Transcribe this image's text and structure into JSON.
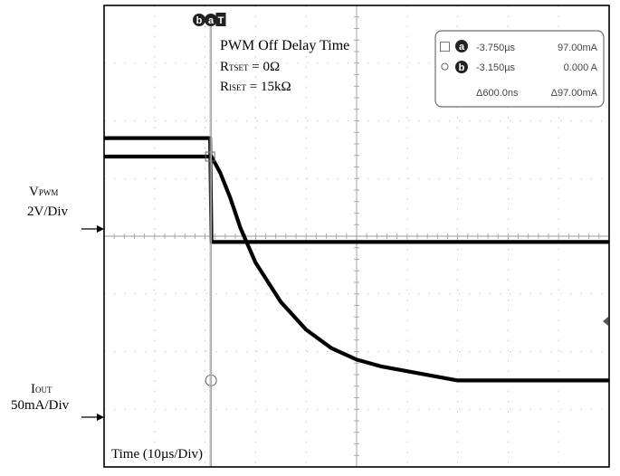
{
  "chart_data": {
    "type": "line",
    "title": "PWM Off Delay Time",
    "conditions": [
      {
        "symbol": "R",
        "subscript": "TSET",
        "value": "= 0Ω"
      },
      {
        "symbol": "R",
        "subscript": "ISET",
        "value": "= 15kΩ"
      }
    ],
    "xlabel": "Time (10µs/Div)",
    "x_unit": "µs",
    "x_range": [
      -25,
      75
    ],
    "cursor_markers": [
      "b",
      "a",
      "T"
    ],
    "channels": [
      {
        "name_main": "V",
        "name_sub": "PWM",
        "scale": "2V/Div",
        "unit": "V",
        "y_range": [
          -8,
          8
        ],
        "x": [
          -25,
          -4,
          -3.75,
          75
        ],
        "y": [
          3.4,
          3.4,
          -0.2,
          -0.2
        ]
      },
      {
        "name_main": "I",
        "name_sub": "OUT",
        "scale": "50mA/Div",
        "unit": "mA",
        "y_range": [
          -37.5,
          162.5
        ],
        "x": [
          -25,
          -4,
          -3.75,
          -2,
          0,
          2,
          5,
          10,
          15,
          20,
          25,
          30,
          35,
          40,
          45,
          75
        ],
        "y": [
          97,
          97,
          97,
          90,
          79,
          66,
          51,
          34,
          22,
          14,
          9,
          6,
          4,
          2,
          0,
          0
        ]
      }
    ],
    "cursor_readout": {
      "rows": [
        {
          "marker": "a",
          "marker_box": "□",
          "time": "-3.750µs",
          "value": "97.00mA"
        },
        {
          "marker": "b",
          "marker_box": "○",
          "time": "-3.150µs",
          "value": "0.000 A"
        }
      ],
      "delta_time": "Δ600.0ns",
      "delta_value": "Δ97.00mA"
    },
    "grid": true,
    "grid_divisions": [
      10,
      8
    ]
  }
}
